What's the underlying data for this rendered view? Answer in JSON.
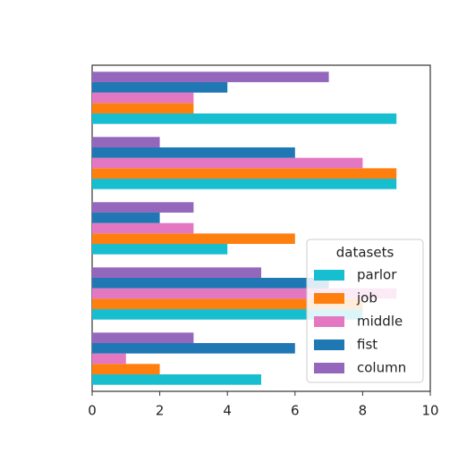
{
  "chart_data": {
    "type": "barh",
    "categories": [
      null,
      null,
      null,
      null,
      null
    ],
    "series": [
      {
        "name": "parlor",
        "color": "#17becf",
        "values": [
          5,
          8,
          4,
          9,
          9
        ]
      },
      {
        "name": "job",
        "color": "#ff7f0e",
        "values": [
          2,
          8,
          6,
          9,
          3
        ]
      },
      {
        "name": "middle",
        "color": "#e377c2",
        "values": [
          1,
          9,
          3,
          8,
          3
        ]
      },
      {
        "name": "fist",
        "color": "#1f77b4",
        "values": [
          6,
          7,
          2,
          6,
          4
        ]
      },
      {
        "name": "column",
        "color": "#9467bd",
        "values": [
          3,
          5,
          3,
          2,
          7
        ]
      }
    ],
    "legend_title": "datasets",
    "legend": "lower right",
    "xlim": [
      0,
      10
    ],
    "xticks": [
      0,
      2,
      4,
      6,
      8,
      10
    ]
  }
}
